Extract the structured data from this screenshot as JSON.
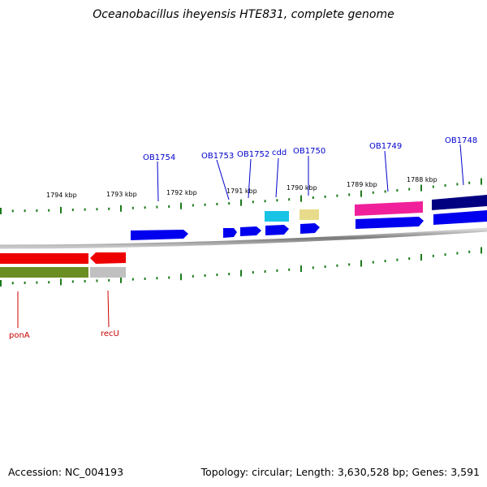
{
  "title": "Oceanobacillus iheyensis HTE831, complete genome",
  "accession": "Accession: NC_004193",
  "topology": "Topology: circular; Length: 3,630,528 bp; Genes: 3,591",
  "colors": {
    "ring": "#808080",
    "tick": "#1b7a1b",
    "gene_label": "#0000cc",
    "rev_label": "#cc0000",
    "strand_blue": "#0000ee",
    "red": "#ee0000",
    "olive": "#6b8e23",
    "gray": "#c0c0c0",
    "cyan": "#19c3e6",
    "khaki": "#e8dc8c",
    "pink": "#f0209a",
    "navy": "#000080"
  },
  "scale_labels": [
    "1794 kbp",
    "1793 kbp",
    "1792 kbp",
    "1791 kbp",
    "1790 kbp",
    "1789 kbp",
    "1788 kbp"
  ],
  "forward_labels": [
    "OB1754",
    "OB1753",
    "OB1752",
    "cdd",
    "OB1750",
    "OB1749",
    "OB1748"
  ],
  "reverse_labels": [
    "ponA",
    "recU"
  ]
}
